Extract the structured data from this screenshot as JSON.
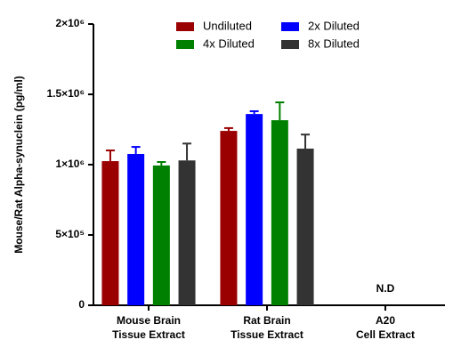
{
  "chart_data": {
    "type": "bar",
    "y_label": "Mouse/Rat Alpha-synuclein (pg/ml)",
    "categories": [
      [
        "Mouse Brain",
        "Tissue Extract"
      ],
      [
        "Rat Brain",
        "Tissue Extract"
      ],
      [
        "A20",
        "Cell Extract"
      ]
    ],
    "series": [
      {
        "name": "Undiluted",
        "color": "#9b0000",
        "values": [
          1025000,
          1240000,
          null
        ],
        "errors": [
          76000,
          20000,
          null
        ]
      },
      {
        "name": "2x Diluted",
        "color": "#0000ff",
        "values": [
          1076000,
          1360000,
          null
        ],
        "errors": [
          50000,
          20000,
          null
        ]
      },
      {
        "name": "4x Diluted",
        "color": "#008000",
        "values": [
          994000,
          1316000,
          null
        ],
        "errors": [
          25000,
          127000,
          null
        ]
      },
      {
        "name": "8x Diluted",
        "color": "#333333",
        "values": [
          1030000,
          1114000,
          null
        ],
        "errors": [
          120000,
          100000,
          null
        ]
      }
    ],
    "annotations": [
      {
        "category": 2,
        "text": "N.D"
      }
    ],
    "ylim": [
      0,
      2000000
    ],
    "yticks": [
      0,
      {
        "value": 500000,
        "label": "5×10⁵"
      },
      {
        "value": 1000000,
        "label": "1×10⁶"
      },
      {
        "value": 1500000,
        "label": "1.5×10⁶"
      },
      {
        "value": 2000000,
        "label": "2×10⁶"
      }
    ]
  }
}
